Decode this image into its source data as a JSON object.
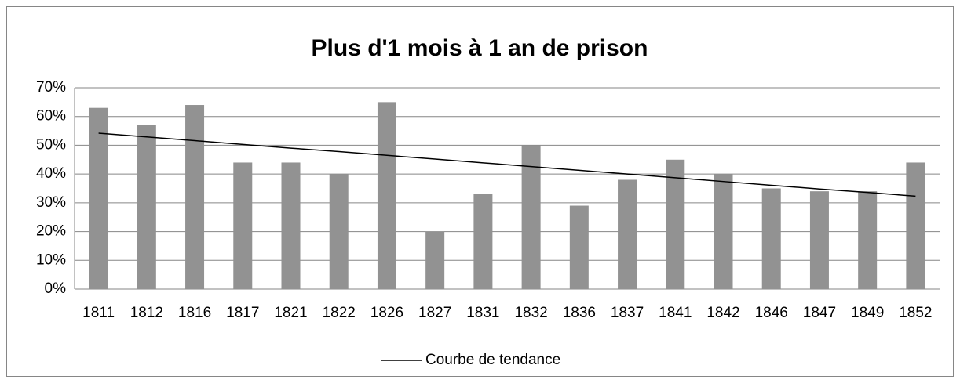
{
  "chart_data": {
    "type": "bar",
    "title": "Plus d'1 mois à 1 an de prison",
    "categories": [
      "1811",
      "1812",
      "1816",
      "1817",
      "1821",
      "1822",
      "1826",
      "1827",
      "1831",
      "1832",
      "1836",
      "1837",
      "1841",
      "1842",
      "1846",
      "1847",
      "1849",
      "1852"
    ],
    "series": [
      {
        "color": "#929292",
        "values": [
          63,
          57,
          64,
          44,
          44,
          40,
          65,
          20,
          33,
          50,
          29,
          38,
          45,
          40,
          35,
          34,
          34,
          44
        ]
      },
      {
        "name": "Courbe de tendance",
        "type": "line",
        "color": "#000000",
        "values": [
          54.2,
          52.9,
          51.6,
          50.3,
          49.0,
          47.8,
          46.5,
          45.2,
          43.9,
          42.6,
          41.3,
          40.0,
          38.7,
          37.4,
          36.1,
          34.8,
          33.6,
          32.3
        ]
      }
    ],
    "ylim": [
      0,
      70
    ],
    "yticks": [
      {
        "value": 0,
        "label": "0%"
      },
      {
        "value": 10,
        "label": "10%"
      },
      {
        "value": 20,
        "label": "20%"
      },
      {
        "value": 30,
        "label": "30%"
      },
      {
        "value": 40,
        "label": "40%"
      },
      {
        "value": 50,
        "label": "50%"
      },
      {
        "value": 60,
        "label": "60%"
      },
      {
        "value": 70,
        "label": "70%"
      }
    ],
    "grid": true,
    "legend": "bottom"
  }
}
